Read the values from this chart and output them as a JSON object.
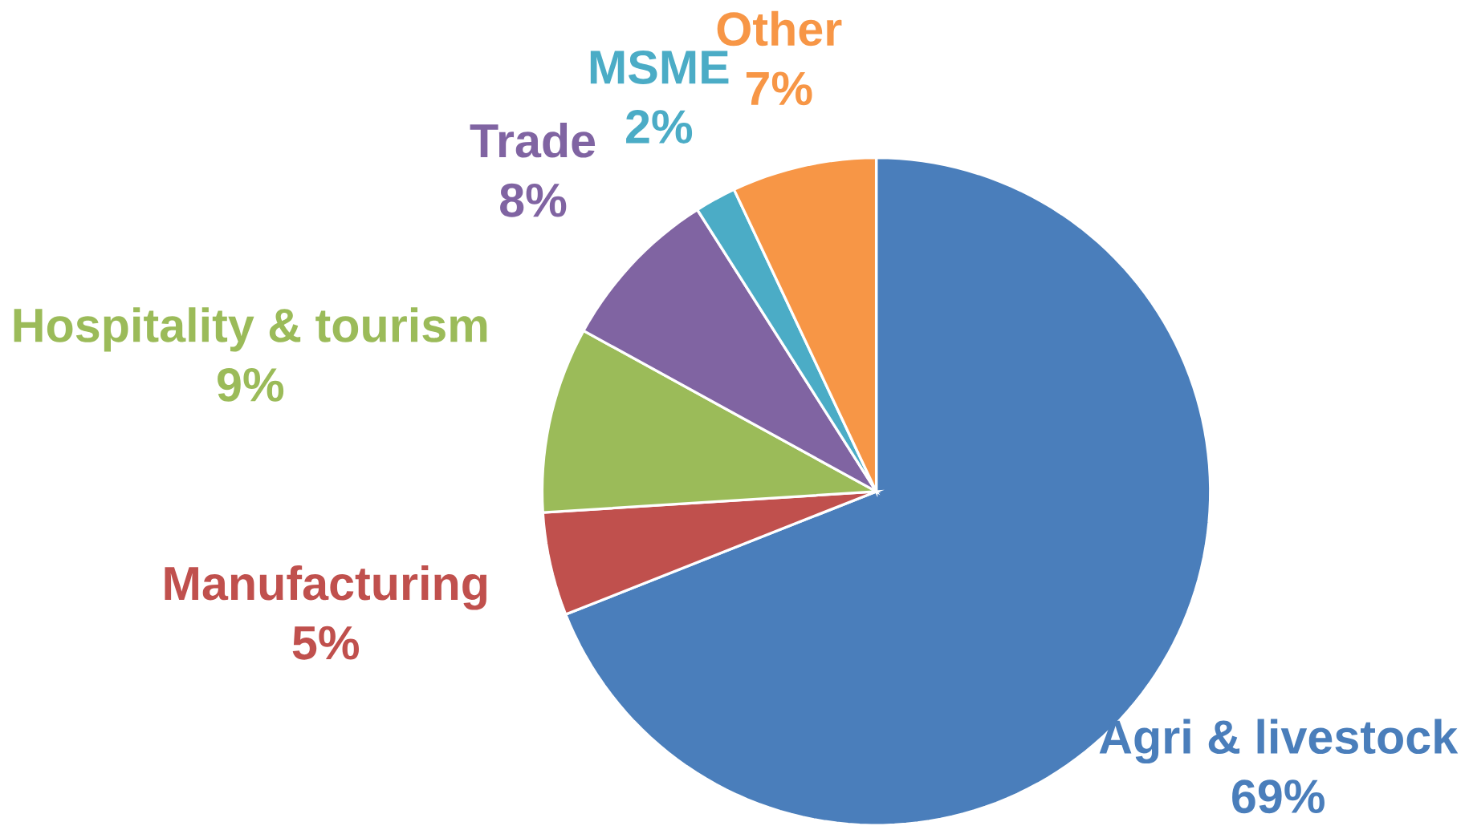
{
  "chart_data": {
    "type": "pie",
    "categories": [
      "Agri & livestock",
      "Manufacturing",
      "Hospitality & tourism",
      "Trade",
      "MSME",
      "Other"
    ],
    "values": [
      69,
      5,
      9,
      8,
      2,
      7
    ],
    "value_labels": [
      "69%",
      "5%",
      "9%",
      "8%",
      "2%",
      "7%"
    ],
    "colors": [
      "#4a7ebb",
      "#c0504d",
      "#9bbb59",
      "#8064a2",
      "#4bacc6",
      "#f79646"
    ]
  }
}
